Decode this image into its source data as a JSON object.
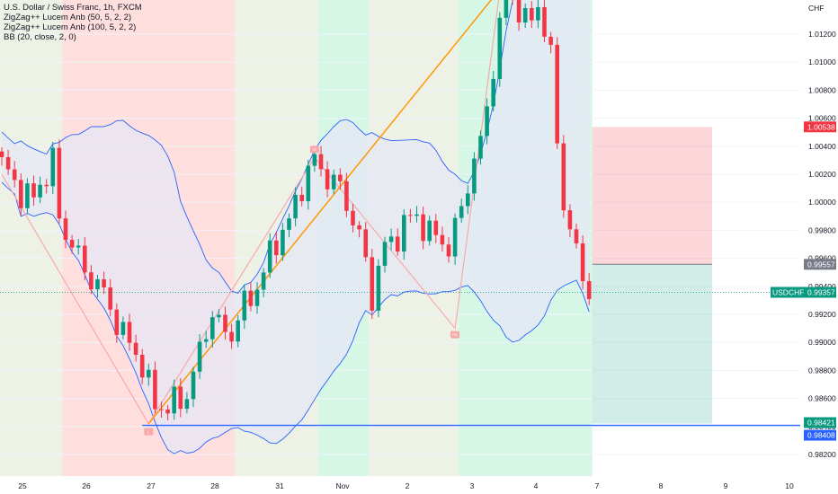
{
  "legend": {
    "title": "U.S. Dollar / Swiss Franc, 1h, FXCM",
    "indicators": [
      "ZigZag++ Lucem Anb (50, 5, 2, 2)",
      "ZigZag++ Lucem Anb (100, 5, 2, 2)",
      "BB (20, close, 2, 0)"
    ]
  },
  "chart_data": {
    "type": "candlestick",
    "symbol": "USDCHF",
    "currency": "CHF",
    "x_ticks": [
      "25",
      "26",
      "27",
      "28",
      "31",
      "Nov",
      "2",
      "3",
      "4",
      "7",
      "8",
      "9",
      "10"
    ],
    "y_ticks": [
      "1.01200",
      "1.01000",
      "1.00800",
      "1.00600",
      "1.00400",
      "1.00200",
      "1.00000",
      "0.99800",
      "0.99600",
      "0.99400",
      "0.99200",
      "0.99000",
      "0.98800",
      "0.98600",
      "0.98400",
      "0.98200"
    ],
    "ylim": [
      0.9812,
      1.0152
    ],
    "price_labels": [
      {
        "label": "",
        "value": "1.00538",
        "color": "#f23645"
      },
      {
        "label": "",
        "value": "0.99557",
        "color": "#787b86"
      },
      {
        "label": "USDCHF",
        "value": "0.99357",
        "color": "#089981"
      },
      {
        "label": "",
        "value": "0.98421",
        "color": "#089981"
      },
      {
        "label": "",
        "value": "0.98408",
        "color": "#2962ff"
      }
    ],
    "zigzag_markers": [
      "L",
      "H",
      "HL"
    ],
    "horizontal_line": 0.98408,
    "position": {
      "entry": 0.99557,
      "stop": 1.00538,
      "target": 0.98421
    },
    "background_zones": [
      {
        "from": -0.5,
        "to": 9.5,
        "color": "#eef1e6"
      },
      {
        "from": 9.5,
        "to": 36.5,
        "color": "#ffdede"
      },
      {
        "from": 36.5,
        "to": 49.5,
        "color": "#eef1e6"
      },
      {
        "from": 49.5,
        "to": 57.5,
        "color": "#d6f7e6"
      },
      {
        "from": 57.5,
        "to": 71.5,
        "color": "#eef1e6"
      },
      {
        "from": 71.5,
        "to": 92.5,
        "color": "#d6f7e6"
      }
    ],
    "colors": {
      "up": "#089981",
      "down": "#f23645",
      "bb_band": "#2962ff",
      "bb_fill": "#e5e7f6",
      "zigzag_50": "#ff9800",
      "zigzag_100": "#f7a9a9"
    }
  }
}
